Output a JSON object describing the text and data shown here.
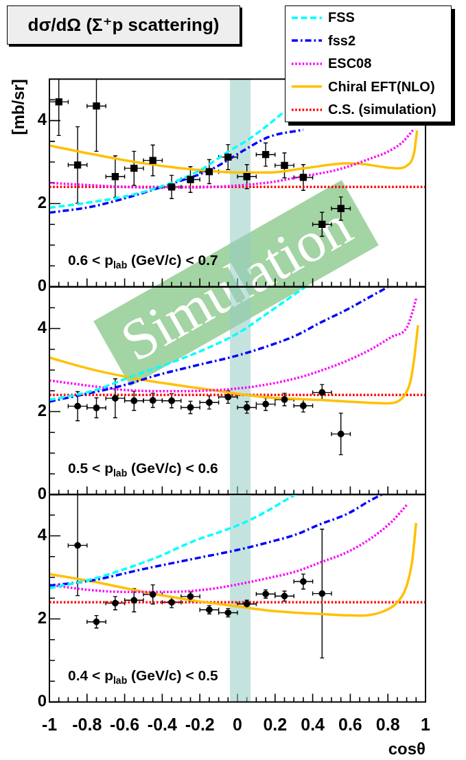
{
  "chart_data": [
    {
      "type": "scatter",
      "title": "dσ/dΩ (Σ⁺p scattering)",
      "ylabel": "[mb/sr]",
      "annotations": [
        "0.6 < p$_{lab}$ (GeV/c) < 0.7",
        "Simulation"
      ],
      "legend": "top right",
      "tick_labels": "y",
      "xlim": [
        -1,
        1
      ],
      "ylim": [
        0,
        5
      ],
      "xticks": [
        -1,
        {
          "value": -0.95,
          "label": null
        },
        {
          "value": -0.9,
          "label": null
        },
        {
          "value": -0.85,
          "label": null
        },
        -0.8,
        {
          "value": -0.75,
          "label": null
        },
        {
          "value": -0.7,
          "label": null
        },
        {
          "value": -0.65,
          "label": null
        },
        -0.6,
        {
          "value": -0.55,
          "label": null
        },
        {
          "value": -0.5,
          "label": null
        },
        {
          "value": -0.45,
          "label": null
        },
        -0.4,
        {
          "value": -0.35,
          "label": null
        },
        {
          "value": -0.3,
          "label": null
        },
        {
          "value": -0.25,
          "label": null
        },
        -0.2,
        {
          "value": -0.15,
          "label": null
        },
        {
          "value": -0.1,
          "label": null
        },
        {
          "value": -0.05,
          "label": null
        },
        0,
        {
          "value": 0.05,
          "label": null
        },
        {
          "value": 0.1,
          "label": null
        },
        {
          "value": 0.15,
          "label": null
        },
        0.2,
        {
          "value": 0.25,
          "label": null
        },
        {
          "value": 0.3,
          "label": null
        },
        {
          "value": 0.35,
          "label": null
        },
        0.4,
        {
          "value": 0.45,
          "label": null
        },
        {
          "value": 0.5,
          "label": null
        },
        {
          "value": 0.55,
          "label": null
        },
        0.6,
        {
          "value": 0.65,
          "label": null
        },
        {
          "value": 0.7,
          "label": null
        },
        {
          "value": 0.75,
          "label": null
        },
        0.8,
        {
          "value": 0.85,
          "label": null
        },
        {
          "value": 0.9,
          "label": null
        },
        {
          "value": 0.95,
          "label": null
        },
        1
      ],
      "yticks": [
        0,
        {
          "value": 0.5,
          "label": null
        },
        {
          "value": 1,
          "label": null
        },
        {
          "value": 1.5,
          "label": null
        },
        2,
        {
          "value": 2.5,
          "label": null
        },
        {
          "value": 3,
          "label": null
        },
        {
          "value": 3.5,
          "label": null
        },
        4,
        {
          "value": 4.5,
          "label": null
        }
      ],
      "bands": [
        {
          "axis": "x",
          "from": -0.04,
          "to": 0.07,
          "color": "#c5e3de"
        }
      ],
      "series": [
        {
          "marker": "square",
          "color": "#000000",
          "x": [
            -0.95,
            -0.85,
            -0.75,
            -0.65,
            -0.55,
            -0.45,
            -0.35,
            -0.25,
            -0.15,
            -0.05,
            0.05,
            0.15,
            0.25,
            0.35,
            0.45,
            0.55
          ],
          "values": [
            4.45,
            2.93,
            4.35,
            2.65,
            2.85,
            3.04,
            2.4,
            2.58,
            2.77,
            3.12,
            2.65,
            3.18,
            2.92,
            2.63,
            1.5,
            1.88
          ],
          "errors": [
            [
              3.64,
              5
            ],
            0.92,
            [
              3.26,
              5
            ],
            0.5,
            0.41,
            0.37,
            0.28,
            0.31,
            0.29,
            0.3,
            0.29,
            0.28,
            0.3,
            0.31,
            0.29,
            0.28
          ],
          "xerrors": [
            0.05,
            0.05,
            0.05,
            0.05,
            0.05,
            0.05,
            0.05,
            0.05,
            0.05,
            0.05,
            0.05,
            0.05,
            0.05,
            0.05,
            0.05,
            0.05
          ]
        },
        {
          "name": "FSS",
          "type": "line",
          "color": "#00ffff",
          "line_style": "dashed",
          "marker": "none",
          "x": [
            -1,
            -0.8,
            -0.6,
            -0.4,
            -0.2,
            -0.05,
            0.05,
            0.15,
            0.24
          ],
          "values": [
            1.9,
            2.02,
            2.17,
            2.42,
            2.8,
            3.25,
            3.52,
            3.85,
            4.18
          ]
        },
        {
          "name": "fss2",
          "type": "line",
          "color": "#0000ff",
          "line_style": "dashdot",
          "marker": "none",
          "x": [
            -1,
            -0.77,
            -0.5,
            -0.35,
            -0.15,
            -0.05,
            0.04,
            0.17,
            0.35
          ],
          "values": [
            1.78,
            1.93,
            2.26,
            2.48,
            2.8,
            3.05,
            3.3,
            3.61,
            3.78
          ]
        },
        {
          "name": "ESC08",
          "type": "line",
          "color": "#ff00ff",
          "line_style": "dotted",
          "marker": "none",
          "x": [
            -1,
            -0.77,
            -0.5,
            -0.23,
            0.04,
            0.2,
            0.35,
            0.5,
            0.58,
            0.71,
            0.8,
            0.88,
            0.935
          ],
          "values": [
            2.5,
            2.44,
            2.39,
            2.39,
            2.45,
            2.53,
            2.66,
            2.78,
            2.88,
            3.09,
            3.25,
            3.49,
            3.78
          ]
        },
        {
          "name": "Chiral EFT(NLO)",
          "type": "line",
          "color": "#ffc000",
          "line_style": "solid",
          "marker": "none",
          "x": [
            -1,
            -0.77,
            -0.5,
            -0.23,
            0,
            0.17,
            0.37,
            0.58,
            0.65,
            0.85,
            0.9,
            0.94,
            0.955
          ],
          "values": [
            3.4,
            3.19,
            2.97,
            2.82,
            2.75,
            2.75,
            2.86,
            2.97,
            2.96,
            2.85,
            2.91,
            3.24,
            3.76
          ]
        },
        {
          "name": "C.S. (simulation)",
          "type": "line",
          "color": "#ff0000",
          "line_style": "dotted",
          "marker": "none",
          "x": [
            -1,
            1
          ],
          "values": [
            2.4,
            2.4
          ]
        }
      ]
    },
    {
      "type": "scatter",
      "annotations": [
        "0.5 < p$_{lab}$ (GeV/c) < 0.6"
      ],
      "tick_labels": "y",
      "xlim": [
        -1,
        1
      ],
      "ylim": [
        0,
        5
      ],
      "xticks": [
        -1,
        {
          "value": -0.95,
          "label": null
        },
        {
          "value": -0.9,
          "label": null
        },
        {
          "value": -0.85,
          "label": null
        },
        -0.8,
        {
          "value": -0.75,
          "label": null
        },
        {
          "value": -0.7,
          "label": null
        },
        {
          "value": -0.65,
          "label": null
        },
        -0.6,
        {
          "value": -0.55,
          "label": null
        },
        {
          "value": -0.5,
          "label": null
        },
        {
          "value": -0.45,
          "label": null
        },
        -0.4,
        {
          "value": -0.35,
          "label": null
        },
        {
          "value": -0.3,
          "label": null
        },
        {
          "value": -0.25,
          "label": null
        },
        -0.2,
        {
          "value": -0.15,
          "label": null
        },
        {
          "value": -0.1,
          "label": null
        },
        {
          "value": -0.05,
          "label": null
        },
        0,
        {
          "value": 0.05,
          "label": null
        },
        {
          "value": 0.1,
          "label": null
        },
        {
          "value": 0.15,
          "label": null
        },
        0.2,
        {
          "value": 0.25,
          "label": null
        },
        {
          "value": 0.3,
          "label": null
        },
        {
          "value": 0.35,
          "label": null
        },
        0.4,
        {
          "value": 0.45,
          "label": null
        },
        {
          "value": 0.5,
          "label": null
        },
        {
          "value": 0.55,
          "label": null
        },
        0.6,
        {
          "value": 0.65,
          "label": null
        },
        {
          "value": 0.7,
          "label": null
        },
        {
          "value": 0.75,
          "label": null
        },
        0.8,
        {
          "value": 0.85,
          "label": null
        },
        {
          "value": 0.9,
          "label": null
        },
        {
          "value": 0.95,
          "label": null
        },
        1
      ],
      "yticks": [
        0,
        {
          "value": 0.5,
          "label": null
        },
        {
          "value": 1,
          "label": null
        },
        {
          "value": 1.5,
          "label": null
        },
        2,
        {
          "value": 2.5,
          "label": null
        },
        {
          "value": 3,
          "label": null
        },
        {
          "value": 3.5,
          "label": null
        },
        4,
        {
          "value": 4.5,
          "label": null
        }
      ],
      "bands": [
        {
          "axis": "x",
          "from": -0.04,
          "to": 0.07,
          "color": "#c5e3de"
        }
      ],
      "series": [
        {
          "marker": "circle",
          "color": "#000000",
          "x": [
            -0.85,
            -0.75,
            -0.65,
            -0.55,
            -0.45,
            -0.35,
            -0.25,
            -0.15,
            -0.05,
            0.05,
            0.15,
            0.25,
            0.35,
            0.45,
            0.55
          ],
          "values": [
            2.13,
            2.09,
            2.32,
            2.26,
            2.27,
            2.26,
            2.1,
            2.22,
            2.35,
            2.1,
            2.18,
            2.29,
            2.14,
            2.46,
            1.46
          ],
          "errors": [
            0.35,
            0.24,
            0.47,
            0.23,
            0.17,
            0.17,
            0.15,
            0.16,
            0.15,
            0.14,
            0.15,
            0.15,
            0.15,
            0.19,
            0.5
          ],
          "xerrors": [
            0.05,
            0.05,
            0.05,
            0.05,
            0.05,
            0.05,
            0.05,
            0.05,
            0.05,
            0.05,
            0.05,
            0.05,
            0.05,
            0.05,
            0.05
          ]
        },
        {
          "type": "line",
          "color": "#00ffff",
          "line_style": "dashed",
          "marker": "none",
          "x": [
            -1,
            -0.77,
            -0.56,
            -0.4,
            -0.2,
            0,
            0.17,
            0.36
          ],
          "values": [
            2.28,
            2.5,
            2.85,
            3.1,
            3.45,
            3.88,
            4.4,
            5
          ]
        },
        {
          "type": "line",
          "color": "#0000ff",
          "line_style": "dashdot",
          "marker": "none",
          "x": [
            -1,
            -0.6,
            -0.44,
            -0.23,
            0,
            0.17,
            0.31,
            0.44,
            0.58,
            0.7,
            0.8
          ],
          "values": [
            2.24,
            2.64,
            2.86,
            3.1,
            3.35,
            3.59,
            3.83,
            4.14,
            4.45,
            4.75,
            5
          ]
        },
        {
          "type": "line",
          "color": "#ff00ff",
          "line_style": "dotted",
          "marker": "none",
          "x": [
            -1,
            -0.77,
            -0.6,
            -0.37,
            -0.1,
            0.1,
            0.31,
            0.44,
            0.58,
            0.71,
            0.82,
            0.9,
            0.93,
            0.95
          ],
          "values": [
            2.75,
            2.61,
            2.52,
            2.49,
            2.52,
            2.61,
            2.8,
            2.98,
            3.22,
            3.5,
            3.8,
            4.02,
            4.39,
            4.72
          ]
        },
        {
          "type": "line",
          "color": "#ffc000",
          "line_style": "solid",
          "marker": "none",
          "x": [
            -1,
            -0.77,
            -0.5,
            -0.23,
            0,
            0.17,
            0.44,
            0.71,
            0.8,
            0.85,
            0.89,
            0.92,
            0.94,
            0.96
          ],
          "values": [
            3.3,
            3.01,
            2.76,
            2.58,
            2.43,
            2.34,
            2.28,
            2.21,
            2.2,
            2.24,
            2.4,
            2.73,
            3.28,
            4.08
          ]
        },
        {
          "type": "line",
          "color": "#ff0000",
          "line_style": "dotted",
          "marker": "none",
          "x": [
            -1,
            1
          ],
          "values": [
            2.4,
            2.4
          ]
        }
      ]
    },
    {
      "type": "scatter",
      "xlabel": "cosθ",
      "annotations": [
        "0.4 < p$_{lab}$ (GeV/c) < 0.5"
      ],
      "xlim": [
        -1,
        1
      ],
      "ylim": [
        0,
        5
      ],
      "xticks": [
        -1,
        {
          "value": -0.95,
          "label": null
        },
        {
          "value": -0.9,
          "label": null
        },
        {
          "value": -0.85,
          "label": null
        },
        -0.8,
        {
          "value": -0.75,
          "label": null
        },
        {
          "value": -0.7,
          "label": null
        },
        {
          "value": -0.65,
          "label": null
        },
        -0.6,
        {
          "value": -0.55,
          "label": null
        },
        {
          "value": -0.5,
          "label": null
        },
        {
          "value": -0.45,
          "label": null
        },
        -0.4,
        {
          "value": -0.35,
          "label": null
        },
        {
          "value": -0.3,
          "label": null
        },
        {
          "value": -0.25,
          "label": null
        },
        -0.2,
        {
          "value": -0.15,
          "label": null
        },
        {
          "value": -0.1,
          "label": null
        },
        {
          "value": -0.05,
          "label": null
        },
        0,
        {
          "value": 0.05,
          "label": null
        },
        {
          "value": 0.1,
          "label": null
        },
        {
          "value": 0.15,
          "label": null
        },
        0.2,
        {
          "value": 0.25,
          "label": null
        },
        {
          "value": 0.3,
          "label": null
        },
        {
          "value": 0.35,
          "label": null
        },
        0.4,
        {
          "value": 0.45,
          "label": null
        },
        {
          "value": 0.5,
          "label": null
        },
        {
          "value": 0.55,
          "label": null
        },
        0.6,
        {
          "value": 0.65,
          "label": null
        },
        {
          "value": 0.7,
          "label": null
        },
        {
          "value": 0.75,
          "label": null
        },
        0.8,
        {
          "value": 0.85,
          "label": null
        },
        {
          "value": 0.9,
          "label": null
        },
        {
          "value": 0.95,
          "label": null
        },
        1
      ],
      "yticks": [
        0,
        {
          "value": 0.5,
          "label": null
        },
        {
          "value": 1,
          "label": null
        },
        {
          "value": 1.5,
          "label": null
        },
        2,
        {
          "value": 2.5,
          "label": null
        },
        {
          "value": 3,
          "label": null
        },
        {
          "value": 3.5,
          "label": null
        },
        4,
        {
          "value": 4.5,
          "label": null
        }
      ],
      "bands": [
        {
          "axis": "x",
          "from": -0.04,
          "to": 0.07,
          "color": "#c5e3de"
        }
      ],
      "series": [
        {
          "marker": "circle",
          "color": "#000000",
          "x": [
            -0.85,
            -0.75,
            -0.65,
            -0.55,
            -0.45,
            -0.35,
            -0.25,
            -0.15,
            -0.05,
            0.05,
            0.15,
            0.25,
            0.35,
            0.45
          ],
          "values": [
            3.77,
            1.93,
            2.38,
            2.45,
            2.59,
            2.4,
            2.54,
            2.22,
            2.15,
            2.36,
            2.6,
            2.55,
            2.9,
            2.61
          ],
          "errors": [
            [
              2.56,
              5
            ],
            0.15,
            0.16,
            0.28,
            0.23,
            0.13,
            0.11,
            0.1,
            0.1,
            0.09,
            0.1,
            0.12,
            0.18,
            1.55
          ],
          "xerrors": [
            0.05,
            0.05,
            0.05,
            0.05,
            0.05,
            0.05,
            0.05,
            0.05,
            0.05,
            0.05,
            0.05,
            0.05,
            0.05,
            0.05
          ]
        },
        {
          "type": "line",
          "color": "#00ffff",
          "line_style": "dashed",
          "marker": "none",
          "x": [
            -1,
            -0.77,
            -0.6,
            -0.43,
            -0.23,
            -0.04,
            0.08,
            0.31
          ],
          "values": [
            2.74,
            2.96,
            3.2,
            3.48,
            3.88,
            4.18,
            4.41,
            5
          ]
        },
        {
          "type": "line",
          "color": "#0000ff",
          "line_style": "dashdot",
          "marker": "none",
          "x": [
            -1,
            -0.77,
            -0.5,
            -0.23,
            0,
            0.17,
            0.31,
            0.44,
            0.58,
            0.71,
            0.77
          ],
          "values": [
            2.8,
            2.93,
            3.2,
            3.45,
            3.66,
            3.85,
            4.03,
            4.28,
            4.52,
            4.86,
            5
          ]
        },
        {
          "type": "line",
          "color": "#ff00ff",
          "line_style": "dotted",
          "marker": "none",
          "x": [
            -1,
            -0.77,
            -0.6,
            -0.37,
            -0.16,
            0,
            0.17,
            0.31,
            0.44,
            0.58,
            0.71,
            0.82,
            0.9
          ],
          "values": [
            2.82,
            2.69,
            2.65,
            2.65,
            2.71,
            2.83,
            2.99,
            3.14,
            3.36,
            3.6,
            3.94,
            4.34,
            4.74
          ]
        },
        {
          "type": "line",
          "color": "#ffc000",
          "line_style": "solid",
          "marker": "none",
          "x": [
            -1,
            -0.77,
            -0.5,
            -0.23,
            0,
            0.17,
            0.44,
            0.65,
            0.71,
            0.78,
            0.85,
            0.9,
            0.93,
            0.95
          ],
          "values": [
            3.08,
            2.9,
            2.65,
            2.44,
            2.3,
            2.2,
            2.12,
            2.08,
            2.1,
            2.19,
            2.4,
            2.8,
            3.42,
            4.31
          ]
        },
        {
          "type": "line",
          "color": "#ff0000",
          "line_style": "dotted",
          "marker": "none",
          "x": [
            -1,
            1
          ],
          "values": [
            2.4,
            2.4
          ]
        }
      ]
    }
  ]
}
